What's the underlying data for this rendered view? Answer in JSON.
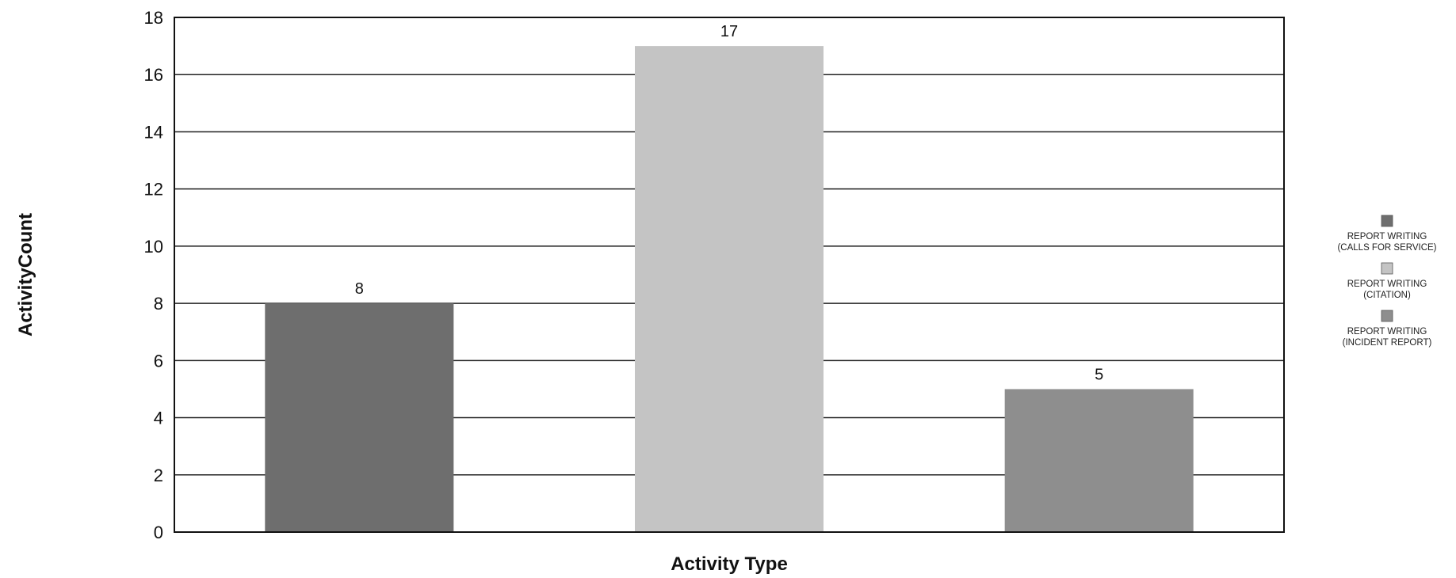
{
  "chart_data": {
    "type": "bar",
    "title": "",
    "xlabel": "Activity Type",
    "ylabel": "ActivityCount",
    "ylim": [
      0,
      18
    ],
    "yticks": [
      0,
      2,
      4,
      6,
      8,
      10,
      12,
      14,
      16,
      18
    ],
    "grid": true,
    "legend_position": "right",
    "series": [
      {
        "name": "REPORT WRITING (CALLS FOR SERVICE)",
        "legend_lines": [
          "REPORT WRITING",
          "(CALLS FOR SERVICE)"
        ],
        "value": 8,
        "color": "#6e6e6e"
      },
      {
        "name": "REPORT WRITING (CITATION)",
        "legend_lines": [
          "REPORT WRITING",
          "(CITATION)"
        ],
        "value": 17,
        "color": "#c4c4c4"
      },
      {
        "name": "REPORT WRITING (INCIDENT REPORT)",
        "legend_lines": [
          "REPORT WRITING",
          "(INCIDENT REPORT)"
        ],
        "value": 5,
        "color": "#8e8e8e"
      }
    ]
  }
}
